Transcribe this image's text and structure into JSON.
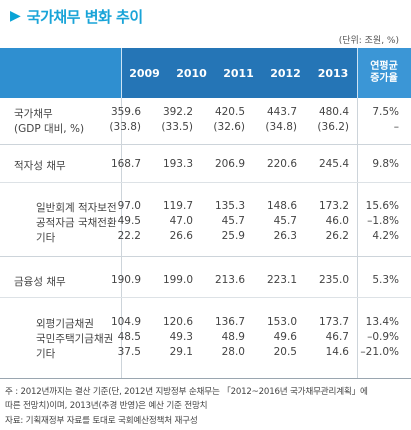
{
  "title": "국가채무 변화 추이",
  "unit": "(단위: 조원, %)",
  "header": {
    "years": [
      "2009",
      "2010",
      "2011",
      "2012",
      "2013"
    ],
    "growth_label_1": "연평균",
    "growth_label_2": "증가율"
  },
  "rows": [
    {
      "label": "국가채무",
      "values": [
        "359.6",
        "392.2",
        "420.5",
        "443.7",
        "480.4",
        "7.5%"
      ]
    },
    {
      "label": "(GDP 대비, %)",
      "values": [
        "(33.8)",
        "(33.5)",
        "(32.6)",
        "(34.8)",
        "(36.2)",
        "–"
      ]
    },
    {
      "label": "적자성 채무",
      "values": [
        "168.7",
        "193.3",
        "206.9",
        "220.6",
        "245.4",
        "9.8%"
      ]
    },
    {
      "label": "일반회계 적자보전",
      "values": [
        "97.0",
        "119.7",
        "135.3",
        "148.6",
        "173.2",
        "15.6%"
      ]
    },
    {
      "label": "공적자금 국채전환",
      "values": [
        "49.5",
        "47.0",
        "45.7",
        "45.7",
        "46.0",
        "–1.8%"
      ]
    },
    {
      "label": "기타",
      "values": [
        "22.2",
        "26.6",
        "25.9",
        "26.3",
        "26.2",
        "4.2%"
      ]
    },
    {
      "label": "금융성 채무",
      "values": [
        "190.9",
        "199.0",
        "213.6",
        "223.1",
        "235.0",
        "5.3%"
      ]
    },
    {
      "label": "외평기금채권",
      "values": [
        "104.9",
        "120.6",
        "136.7",
        "153.0",
        "173.7",
        "13.4%"
      ]
    },
    {
      "label": "국민주택기금채권",
      "values": [
        "48.5",
        "49.3",
        "48.9",
        "49.6",
        "46.7",
        "–0.9%"
      ]
    },
    {
      "label": "기타",
      "values": [
        "37.5",
        "29.1",
        "28.0",
        "20.5",
        "14.6",
        "–21.0%"
      ]
    }
  ],
  "notes": [
    "주 : 2012년까지는 결산 기준(단, 2012년 지방정부 순채무는 「2012~2016년 국가채무관리계획」에",
    "      따른 전망치)이며, 2013년(추경 반영)은 예산 기준 전망치",
    "자료: 기획재정부 자료를 토대로 국회예산정책처 재구성"
  ]
}
